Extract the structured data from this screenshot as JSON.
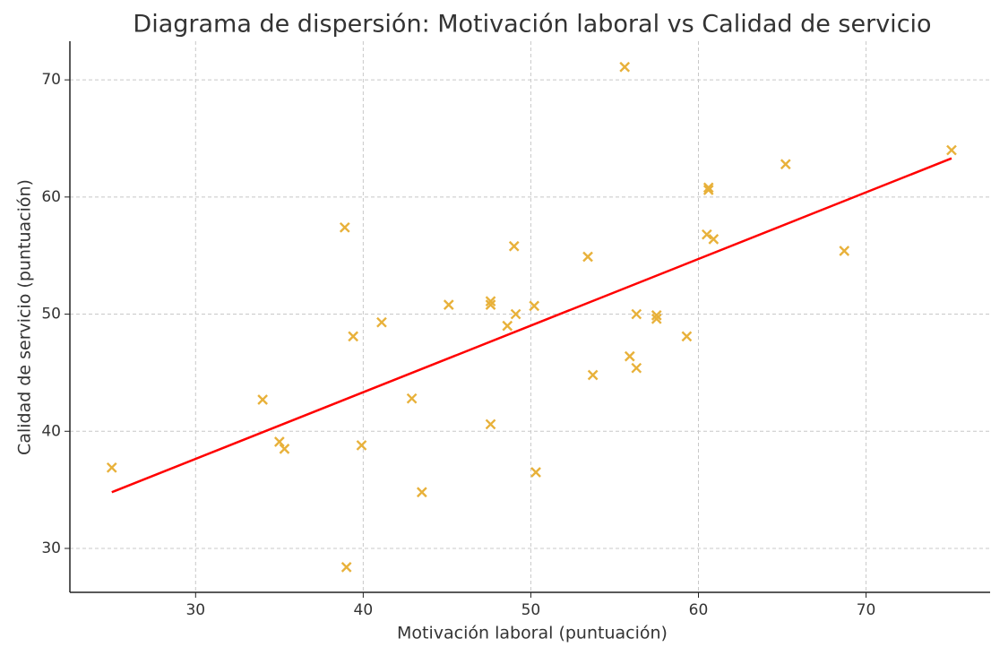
{
  "chart_data": {
    "type": "scatter",
    "title": "Diagrama de dispersión: Motivación laboral vs Calidad de servicio",
    "x_label": "Motivación laboral (puntuación)",
    "y_label": "Calidad de servicio (puntuación)",
    "series": [
      {
        "color": "#e8b13a",
        "marker": "x",
        "x": [
          25.0,
          34.0,
          35.0,
          35.3,
          38.9,
          39.0,
          39.4,
          39.9,
          41.1,
          42.9,
          43.5,
          45.1,
          47.6,
          47.6,
          47.6,
          48.6,
          49.0,
          49.1,
          50.2,
          50.3,
          53.4,
          53.7,
          55.6,
          55.9,
          56.3,
          56.3,
          57.5,
          57.5,
          59.3,
          60.5,
          60.6,
          60.6,
          60.9,
          65.2,
          68.7,
          75.1
        ],
        "values": [
          36.9,
          42.7,
          39.1,
          38.5,
          57.4,
          28.4,
          48.1,
          38.8,
          49.3,
          42.8,
          34.8,
          50.8,
          51.1,
          50.8,
          40.6,
          49.0,
          55.8,
          50.0,
          50.7,
          36.5,
          54.9,
          44.8,
          71.1,
          46.4,
          50.0,
          45.4,
          49.9,
          49.6,
          48.1,
          56.8,
          60.8,
          60.6,
          56.4,
          62.8,
          55.4,
          64.0
        ]
      }
    ],
    "trend_line": {
      "color": "#ff0000",
      "x": [
        25.0,
        75.1
      ],
      "values": [
        34.8,
        63.3
      ]
    },
    "xlim": [
      22.5,
      77.4
    ],
    "ylim": [
      26.25,
      73.3
    ],
    "xticks": [
      30,
      40,
      50,
      60,
      70
    ],
    "yticks": [
      30,
      40,
      50,
      60,
      70
    ],
    "grid": true
  }
}
